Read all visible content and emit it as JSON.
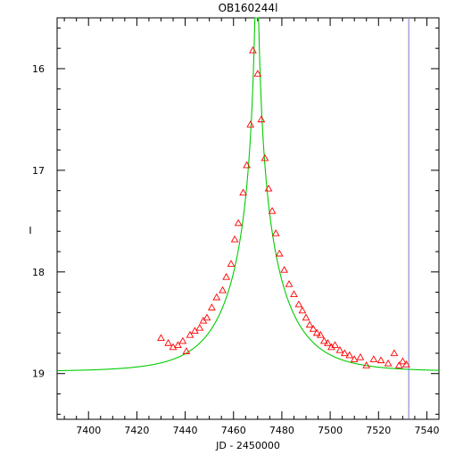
{
  "chart_data": {
    "type": "scatter",
    "title": "OB160244l",
    "xlabel": "JD - 2450000",
    "ylabel": "I",
    "xlim": [
      7387,
      7545
    ],
    "ylim": [
      19.45,
      15.5
    ],
    "y_inverted": true,
    "x_ticks": [
      7400,
      7420,
      7440,
      7460,
      7480,
      7500,
      7520,
      7540
    ],
    "x_tick_labels": [
      "7400",
      "7420",
      "7440",
      "7460",
      "7480",
      "7500",
      "7520",
      "7540"
    ],
    "y_ticks": [
      16,
      17,
      18,
      19
    ],
    "y_tick_labels": [
      "16",
      "17",
      "18",
      "19"
    ],
    "grid": false,
    "marker_color": "#ff0000",
    "model_color": "#00cc00",
    "vline_color": "#7777cc",
    "vline_x": 7532.5,
    "model": {
      "t0": 7469.6,
      "tE": 22.0,
      "u0": 0.02,
      "I_baseline": 18.98
    },
    "observations": {
      "name": "data",
      "marker": "triangle",
      "x": [
        7430.0,
        7433.0,
        7435.0,
        7437.0,
        7439.0,
        7440.5,
        7442.0,
        7444.0,
        7446.0,
        7447.5,
        7449.0,
        7451.0,
        7453.0,
        7455.5,
        7457.0,
        7459.0,
        7460.5,
        7462.0,
        7464.0,
        7465.5,
        7467.0,
        7468.0,
        7470.0,
        7471.5,
        7473.0,
        7474.5,
        7476.0,
        7477.5,
        7479.0,
        7481.0,
        7483.0,
        7485.0,
        7487.0,
        7488.5,
        7490.0,
        7491.5,
        7493.0,
        7494.5,
        7496.0,
        7497.5,
        7499.0,
        7500.5,
        7502.0,
        7504.0,
        7506.0,
        7508.0,
        7510.0,
        7512.5,
        7515.0,
        7518.0,
        7521.0,
        7524.0,
        7526.5,
        7528.5,
        7530.0,
        7531.5
      ],
      "y": [
        18.65,
        18.7,
        18.74,
        18.72,
        18.68,
        18.78,
        18.62,
        18.58,
        18.55,
        18.48,
        18.45,
        18.35,
        18.25,
        18.18,
        18.05,
        17.92,
        17.68,
        17.52,
        17.22,
        16.95,
        16.55,
        15.82,
        16.05,
        16.5,
        16.88,
        17.18,
        17.4,
        17.62,
        17.82,
        17.98,
        18.12,
        18.22,
        18.32,
        18.38,
        18.45,
        18.52,
        18.56,
        18.6,
        18.62,
        18.68,
        18.7,
        18.74,
        18.72,
        18.77,
        18.8,
        18.82,
        18.86,
        18.84,
        18.92,
        18.86,
        18.87,
        18.9,
        18.8,
        18.92,
        18.88,
        18.91
      ]
    }
  }
}
